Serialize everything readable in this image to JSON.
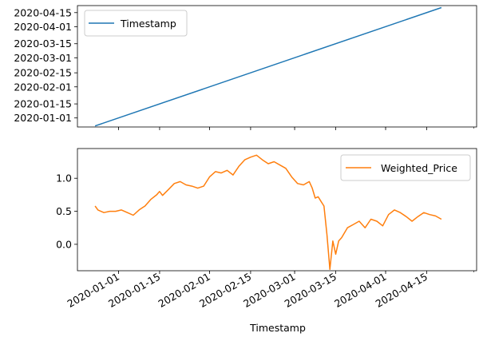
{
  "chart_data": [
    {
      "type": "line",
      "x_type": "date",
      "xlim": [
        "2019-12-18",
        "2020-05-02"
      ],
      "ylim": [
        "2019-12-23",
        "2020-04-22"
      ],
      "x": [
        "2019-12-24",
        "2020-04-20"
      ],
      "series": [
        {
          "name": "Timestamp",
          "color": "#1f77b4",
          "y": [
            "2019-12-24",
            "2020-04-20"
          ]
        }
      ],
      "yticks": [
        "2020-01-01",
        "2020-01-15",
        "2020-02-01",
        "2020-02-15",
        "2020-03-01",
        "2020-03-15",
        "2020-04-01",
        "2020-04-15"
      ],
      "xticks": [
        "2020-01-01",
        "2020-01-15",
        "2020-02-01",
        "2020-02-15",
        "2020-03-01",
        "2020-03-15",
        "2020-04-01",
        "2020-04-15"
      ],
      "xtick_labels_visible": false,
      "grid": false,
      "legend": "upper-left"
    },
    {
      "type": "line",
      "x_type": "date",
      "xlim": [
        "2019-12-18",
        "2020-05-02"
      ],
      "ylim": [
        -0.4,
        1.45
      ],
      "x": [
        "2019-12-24",
        "2019-12-25",
        "2019-12-27",
        "2019-12-29",
        "2019-12-31",
        "2020-01-02",
        "2020-01-04",
        "2020-01-06",
        "2020-01-08",
        "2020-01-09",
        "2020-01-10",
        "2020-01-12",
        "2020-01-14",
        "2020-01-15",
        "2020-01-16",
        "2020-01-18",
        "2020-01-20",
        "2020-01-22",
        "2020-01-24",
        "2020-01-26",
        "2020-01-28",
        "2020-01-30",
        "2020-02-01",
        "2020-02-03",
        "2020-02-05",
        "2020-02-07",
        "2020-02-09",
        "2020-02-11",
        "2020-02-13",
        "2020-02-15",
        "2020-02-17",
        "2020-02-19",
        "2020-02-21",
        "2020-02-23",
        "2020-02-25",
        "2020-02-27",
        "2020-02-29",
        "2020-03-02",
        "2020-03-04",
        "2020-03-06",
        "2020-03-07",
        "2020-03-08",
        "2020-03-09",
        "2020-03-10",
        "2020-03-11",
        "2020-03-12",
        "2020-03-13",
        "2020-03-14",
        "2020-03-15",
        "2020-03-16",
        "2020-03-17",
        "2020-03-19",
        "2020-03-21",
        "2020-03-23",
        "2020-03-25",
        "2020-03-27",
        "2020-03-29",
        "2020-03-31",
        "2020-04-02",
        "2020-04-04",
        "2020-04-06",
        "2020-04-08",
        "2020-04-10",
        "2020-04-12",
        "2020-04-14",
        "2020-04-16",
        "2020-04-18",
        "2020-04-20"
      ],
      "series": [
        {
          "name": "Weighted_Price",
          "color": "#ff7f0e",
          "values": [
            0.58,
            0.52,
            0.48,
            0.5,
            0.5,
            0.52,
            0.48,
            0.44,
            0.52,
            0.55,
            0.58,
            0.68,
            0.75,
            0.8,
            0.74,
            0.83,
            0.92,
            0.95,
            0.9,
            0.88,
            0.85,
            0.88,
            1.02,
            1.1,
            1.08,
            1.12,
            1.05,
            1.18,
            1.28,
            1.32,
            1.35,
            1.28,
            1.22,
            1.25,
            1.2,
            1.15,
            1.02,
            0.92,
            0.9,
            0.95,
            0.85,
            0.7,
            0.72,
            0.65,
            0.58,
            0.15,
            -0.38,
            0.05,
            -0.15,
            0.05,
            0.1,
            0.25,
            0.3,
            0.35,
            0.25,
            0.38,
            0.35,
            0.28,
            0.45,
            0.52,
            0.48,
            0.42,
            0.35,
            0.42,
            0.48,
            0.45,
            0.43,
            0.38
          ]
        }
      ],
      "yticks": [
        0.0,
        0.5,
        1.0
      ],
      "ytick_labels": [
        "0.0",
        "0.5",
        "1.0"
      ],
      "xticks": [
        "2020-01-01",
        "2020-01-15",
        "2020-02-01",
        "2020-02-15",
        "2020-03-01",
        "2020-03-15",
        "2020-04-01",
        "2020-04-15"
      ],
      "xlabel": "Timestamp",
      "grid": false,
      "legend": "upper-right"
    }
  ]
}
